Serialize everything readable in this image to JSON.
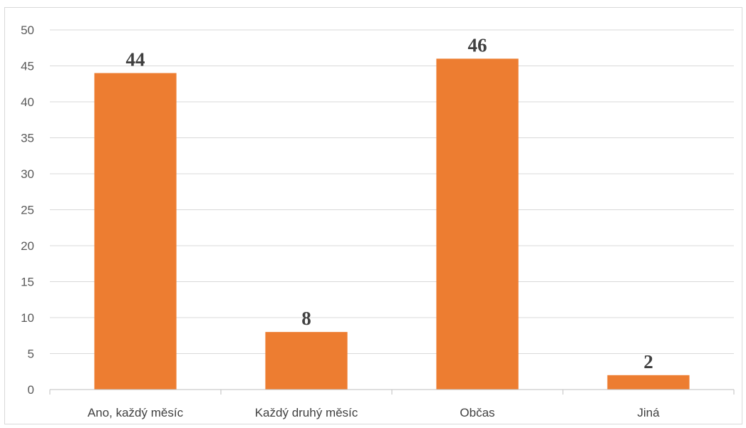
{
  "chart_data": {
    "type": "bar",
    "categories": [
      "Ano, každý měsíc",
      "Každý druhý měsíc",
      "Občas",
      "Jiná"
    ],
    "values": [
      44,
      8,
      46,
      2
    ],
    "data_labels": [
      "44",
      "8",
      "46",
      "2"
    ],
    "yticks": [
      "0",
      "5",
      "10",
      "15",
      "20",
      "25",
      "30",
      "35",
      "40",
      "45",
      "50"
    ],
    "ylim": [
      0,
      50
    ],
    "bar_color": "#ED7D31",
    "grid": true,
    "legend": "none"
  }
}
